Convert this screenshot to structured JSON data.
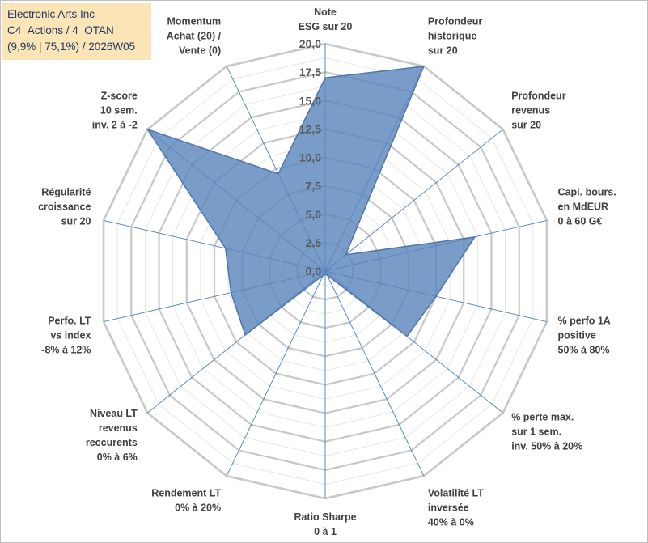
{
  "chart_data": {
    "type": "radar",
    "title_lines": [
      "Electronic Arts Inc",
      "C4_Actions / 4_OTAN",
      "(9,9% | 75,1%) / 2026W05"
    ],
    "r_range": [
      0,
      20
    ],
    "r_ticks": [
      "0,0",
      "2,5",
      "5,0",
      "7,5",
      "10,0",
      "12,5",
      "15,0",
      "17,5",
      "20,0"
    ],
    "r_tick_values": [
      0,
      2.5,
      5,
      7.5,
      10,
      12.5,
      15,
      17.5,
      20
    ],
    "grid": true,
    "axes": [
      {
        "label": [
          "Note",
          "ESG sur 20"
        ],
        "value": 17.0
      },
      {
        "label": [
          "Profondeur",
          "historique",
          "sur 20"
        ],
        "value": 20.0
      },
      {
        "label": [
          "Profondeur",
          "revenus",
          "sur 20"
        ],
        "value": 2.3
      },
      {
        "label": [
          "Capi. bours.",
          "en MdEUR",
          "0 à 60 G€"
        ],
        "value": 13.5
      },
      {
        "label": [
          "% perfo 1A",
          "positive",
          "50% à 80%"
        ],
        "value": 10.0
      },
      {
        "label": [
          "% perte max.",
          "sur 1 sem.",
          "inv. 50% à 20%"
        ],
        "value": 9.2
      },
      {
        "label": [
          "Volatilité LT",
          "inversée",
          "40% à 0%"
        ],
        "value": 0.4
      },
      {
        "label": [
          "Ratio Sharpe",
          "0 à 1"
        ],
        "value": 0.3
      },
      {
        "label": [
          "Rendement LT",
          "0% à 20%"
        ],
        "value": 0.4
      },
      {
        "label": [
          "Niveau LT",
          "revenus",
          "reccurents",
          "0% à 6%"
        ],
        "value": 9.0
      },
      {
        "label": [
          "Perfo. LT",
          "vs index",
          "-8% à 12%"
        ],
        "value": 8.5
      },
      {
        "label": [
          "Régularité",
          "croissance",
          "sur 20"
        ],
        "value": 9.0
      },
      {
        "label": [
          "Z-score",
          "10 sem.",
          "inv. 2 à -2"
        ],
        "value": 20.0
      },
      {
        "label": [
          "Momentum",
          "Achat (20) /",
          "Vente (0)"
        ],
        "value": 9.5
      }
    ],
    "series": [
      {
        "name": "Electronic Arts Inc",
        "color": "#5b86bd",
        "opacity": 0.82,
        "stroke": "#4f76ab"
      }
    ],
    "colors": {
      "grid": "#c8c8c8",
      "spoke": "#4a7ebb"
    }
  }
}
